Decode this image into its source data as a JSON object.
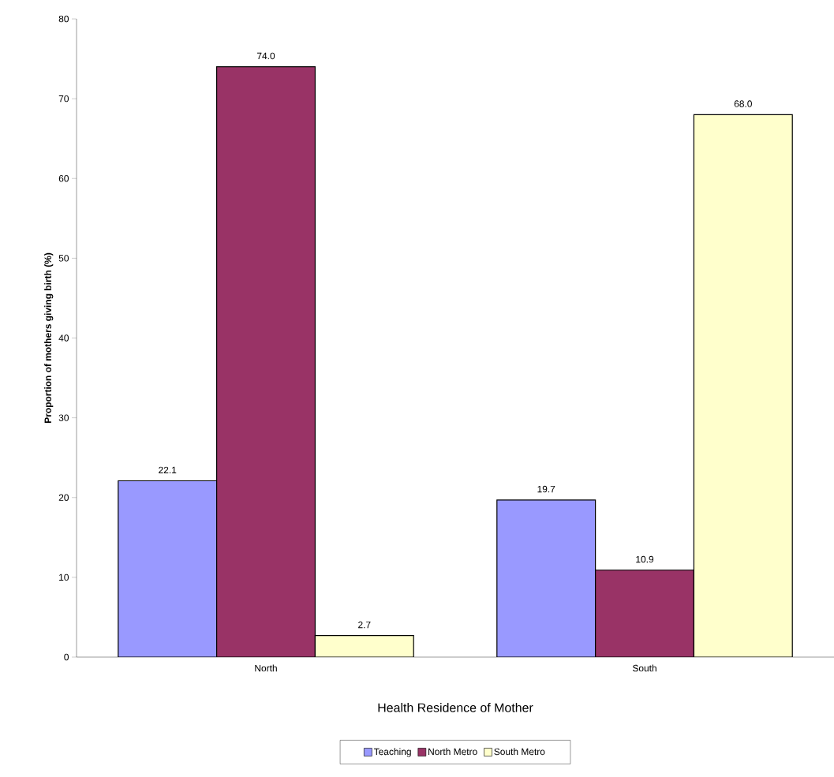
{
  "chart_data": {
    "type": "bar",
    "xlabel": "Health Residence of Mother",
    "ylabel": "Proportion of mothers giving birth (%)",
    "categories": [
      "North",
      "South"
    ],
    "series": [
      {
        "name": "Teaching",
        "color": "#9999ff",
        "values": [
          22.1,
          19.7
        ],
        "value_labels": [
          "22.1",
          "19.7"
        ]
      },
      {
        "name": "North Metro",
        "color": "#993366",
        "values": [
          74.0,
          10.9
        ],
        "value_labels": [
          "74.0",
          "10.9"
        ]
      },
      {
        "name": "South Metro",
        "color": "#ffffcc",
        "values": [
          2.7,
          68.0
        ],
        "value_labels": [
          "2.7",
          "68.0"
        ]
      }
    ],
    "ylim": [
      0,
      80
    ],
    "yticks": [
      0,
      10,
      20,
      30,
      40,
      50,
      60,
      70,
      80
    ],
    "grid": false,
    "legend": "bottom"
  }
}
